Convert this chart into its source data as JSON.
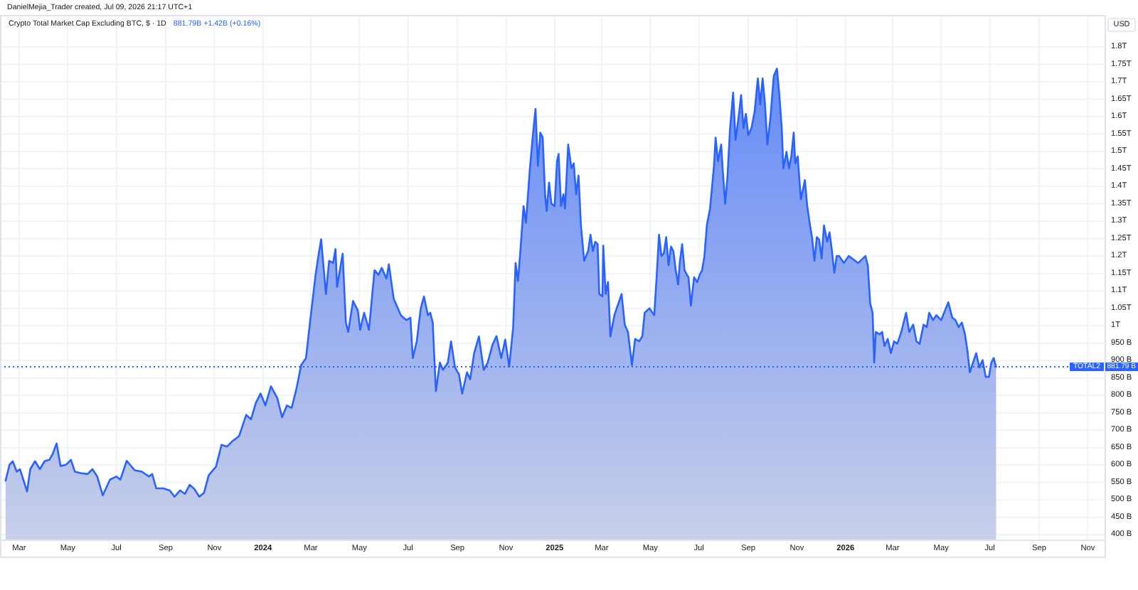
{
  "chart_data": {
    "type": "area",
    "title": "Crypto Total Market Cap Excluding BTC, $ · 1D",
    "subtitle": "881.79B +1.42B (+0.16%)",
    "ylabel": "USD",
    "annotations": [
      "DanielMejia_Trader created, Jul 09, 2026 21:17 UTC+1",
      "881.79 B"
    ],
    "x": [
      "2023-02-12",
      "2023-02-17",
      "2023-02-21",
      "2023-02-26",
      "2023-03-02",
      "2023-03-06",
      "2023-03-11",
      "2023-03-15",
      "2023-03-21",
      "2023-03-27",
      "2023-04-02",
      "2023-04-08",
      "2023-04-12",
      "2023-04-17",
      "2023-04-22",
      "2023-04-29",
      "2023-05-05",
      "2023-05-10",
      "2023-05-17",
      "2023-05-26",
      "2023-06-01",
      "2023-06-07",
      "2023-06-14",
      "2023-06-23",
      "2023-07-01",
      "2023-07-06",
      "2023-07-14",
      "2023-07-24",
      "2023-08-02",
      "2023-08-11",
      "2023-08-15",
      "2023-08-20",
      "2023-08-29",
      "2023-09-06",
      "2023-09-12",
      "2023-09-19",
      "2023-09-25",
      "2023-10-01",
      "2023-10-07",
      "2023-10-13",
      "2023-10-19",
      "2023-10-25",
      "2023-11-03",
      "2023-11-10",
      "2023-11-17",
      "2023-11-23",
      "2023-12-02",
      "2023-12-06",
      "2023-12-11",
      "2023-12-17",
      "2023-12-23",
      "2023-12-29",
      "2024-01-04",
      "2024-01-11",
      "2024-01-19",
      "2024-01-25",
      "2024-01-31",
      "2024-02-06",
      "2024-02-12",
      "2024-02-18",
      "2024-02-24",
      "2024-02-29",
      "2024-03-07",
      "2024-03-11",
      "2024-03-14",
      "2024-03-20",
      "2024-03-24",
      "2024-03-29",
      "2024-04-01",
      "2024-04-03",
      "2024-04-10",
      "2024-04-14",
      "2024-04-17",
      "2024-04-23",
      "2024-04-29",
      "2024-05-02",
      "2024-05-07",
      "2024-05-13",
      "2024-05-20",
      "2024-05-25",
      "2024-05-29",
      "2024-06-04",
      "2024-06-07",
      "2024-06-13",
      "2024-06-22",
      "2024-06-29",
      "2024-07-04",
      "2024-07-07",
      "2024-07-12",
      "2024-07-17",
      "2024-07-21",
      "2024-07-26",
      "2024-07-29",
      "2024-08-01",
      "2024-08-05",
      "2024-08-10",
      "2024-08-14",
      "2024-08-20",
      "2024-08-24",
      "2024-08-29",
      "2024-09-03",
      "2024-09-07",
      "2024-09-13",
      "2024-09-17",
      "2024-09-22",
      "2024-09-28",
      "2024-10-04",
      "2024-10-09",
      "2024-10-15",
      "2024-10-20",
      "2024-10-26",
      "2024-10-31",
      "2024-11-05",
      "2024-11-10",
      "2024-11-13",
      "2024-11-16",
      "2024-11-19",
      "2024-11-23",
      "2024-11-26",
      "2024-12-01",
      "2024-12-05",
      "2024-12-08",
      "2024-12-11",
      "2024-12-14",
      "2024-12-17",
      "2024-12-20",
      "2024-12-22",
      "2024-12-25",
      "2024-12-28",
      "2025-01-01",
      "2025-01-04",
      "2025-01-06",
      "2025-01-09",
      "2025-01-12",
      "2025-01-14",
      "2025-01-18",
      "2025-01-22",
      "2025-01-25",
      "2025-01-28",
      "2025-01-31",
      "2025-02-03",
      "2025-02-07",
      "2025-02-12",
      "2025-02-15",
      "2025-02-18",
      "2025-02-21",
      "2025-02-24",
      "2025-02-26",
      "2025-03-02",
      "2025-03-03",
      "2025-03-06",
      "2025-03-09",
      "2025-03-12",
      "2025-03-17",
      "2025-03-21",
      "2025-03-26",
      "2025-03-30",
      "2025-04-03",
      "2025-04-08",
      "2025-04-12",
      "2025-04-17",
      "2025-04-21",
      "2025-04-24",
      "2025-04-30",
      "2025-05-06",
      "2025-05-09",
      "2025-05-12",
      "2025-05-15",
      "2025-05-18",
      "2025-05-21",
      "2025-05-24",
      "2025-05-27",
      "2025-05-30",
      "2025-06-02",
      "2025-06-05",
      "2025-06-07",
      "2025-06-10",
      "2025-06-13",
      "2025-06-16",
      "2025-06-18",
      "2025-06-21",
      "2025-06-25",
      "2025-06-29",
      "2025-07-02",
      "2025-07-05",
      "2025-07-08",
      "2025-07-11",
      "2025-07-15",
      "2025-07-20",
      "2025-07-22",
      "2025-07-25",
      "2025-07-29",
      "2025-07-31",
      "2025-08-03",
      "2025-08-06",
      "2025-08-09",
      "2025-08-13",
      "2025-08-16",
      "2025-08-20",
      "2025-08-23",
      "2025-08-26",
      "2025-08-29",
      "2025-09-01",
      "2025-09-05",
      "2025-09-09",
      "2025-09-13",
      "2025-09-16",
      "2025-09-19",
      "2025-09-22",
      "2025-09-25",
      "2025-09-29",
      "2025-10-03",
      "2025-10-07",
      "2025-10-10",
      "2025-10-13",
      "2025-10-15",
      "2025-10-19",
      "2025-10-22",
      "2025-10-25",
      "2025-10-28",
      "2025-10-30",
      "2025-11-02",
      "2025-11-06",
      "2025-11-08",
      "2025-11-11",
      "2025-11-14",
      "2025-11-17",
      "2025-11-20",
      "2025-11-23",
      "2025-11-26",
      "2025-11-29",
      "2025-12-02",
      "2025-12-05",
      "2025-12-09",
      "2025-12-12",
      "2025-12-15",
      "2025-12-18",
      "2025-12-21",
      "2025-12-24",
      "2025-12-30",
      "2026-01-05",
      "2026-01-17",
      "2026-01-26",
      "2026-01-29",
      "2026-02-01",
      "2026-02-04",
      "2026-02-06",
      "2026-02-08",
      "2026-02-13",
      "2026-02-16",
      "2026-02-19",
      "2026-02-23",
      "2026-02-27",
      "2026-03-03",
      "2026-03-07",
      "2026-03-12",
      "2026-03-18",
      "2026-03-22",
      "2026-03-27",
      "2026-03-31",
      "2026-04-04",
      "2026-04-09",
      "2026-04-13",
      "2026-04-16",
      "2026-04-21",
      "2026-04-25",
      "2026-05-01",
      "2026-05-06",
      "2026-05-10",
      "2026-05-15",
      "2026-05-19",
      "2026-05-23",
      "2026-05-27",
      "2026-05-31",
      "2026-06-03",
      "2026-06-06",
      "2026-06-10",
      "2026-06-14",
      "2026-06-18",
      "2026-06-22",
      "2026-06-26",
      "2026-06-30",
      "2026-07-03",
      "2026-07-06",
      "2026-07-08",
      "2026-07-09"
    ],
    "series": [
      {
        "color": "#2962ff",
        "values": [
          555000000000.0,
          601000000000.0,
          611000000000.0,
          581000000000.0,
          588000000000.0,
          560000000000.0,
          524000000000.0,
          588000000000.0,
          611000000000.0,
          588000000000.0,
          611000000000.0,
          615000000000.0,
          631000000000.0,
          662000000000.0,
          597000000000.0,
          601000000000.0,
          615000000000.0,
          581000000000.0,
          577000000000.0,
          574000000000.0,
          588000000000.0,
          567000000000.0,
          513000000000.0,
          558000000000.0,
          567000000000.0,
          558000000000.0,
          612000000000.0,
          585000000000.0,
          581000000000.0,
          567000000000.0,
          574000000000.0,
          533000000000.0,
          533000000000.0,
          527000000000.0,
          509000000000.0,
          527000000000.0,
          517000000000.0,
          543000000000.0,
          531000000000.0,
          509000000000.0,
          520000000000.0,
          571000000000.0,
          595000000000.0,
          658000000000.0,
          653000000000.0,
          667000000000.0,
          683000000000.0,
          710000000000.0,
          744000000000.0,
          731000000000.0,
          778000000000.0,
          805000000000.0,
          771000000000.0,
          826000000000.0,
          792000000000.0,
          737000000000.0,
          771000000000.0,
          764000000000.0,
          819000000000.0,
          887000000000.0,
          907000000000.0,
          1009000000000.0,
          1146000000000.0,
          1207000000000.0,
          1248000000000.0,
          1091000000000.0,
          1186000000000.0,
          1180000000000.0,
          1220000000000.0,
          1111000000000.0,
          1207000000000.0,
          1009000000000.0,
          982000000000.0,
          1071000000000.0,
          1044000000000.0,
          988000000000.0,
          1037000000000.0,
          988000000000.0,
          1159000000000.0,
          1146000000000.0,
          1166000000000.0,
          1135000000000.0,
          1176000000000.0,
          1078000000000.0,
          1030000000000.0,
          1016000000000.0,
          1023000000000.0,
          907000000000.0,
          955000000000.0,
          1050000000000.0,
          1084000000000.0,
          1030000000000.0,
          1037000000000.0,
          1009000000000.0,
          812000000000.0,
          894000000000.0,
          873000000000.0,
          894000000000.0,
          955000000000.0,
          880000000000.0,
          860000000000.0,
          805000000000.0,
          866000000000.0,
          846000000000.0,
          921000000000.0,
          969000000000.0,
          873000000000.0,
          894000000000.0,
          945000000000.0,
          970000000000.0,
          907000000000.0,
          960000000000.0,
          882000000000.0,
          996000000000.0,
          1180000000000.0,
          1128000000000.0,
          1214000000000.0,
          1343000000000.0,
          1295000000000.0,
          1452000000000.0,
          1554000000000.0,
          1622000000000.0,
          1459000000000.0,
          1554000000000.0,
          1541000000000.0,
          1377000000000.0,
          1329000000000.0,
          1411000000000.0,
          1350000000000.0,
          1343000000000.0,
          1472000000000.0,
          1493000000000.0,
          1343000000000.0,
          1377000000000.0,
          1336000000000.0,
          1520000000000.0,
          1452000000000.0,
          1466000000000.0,
          1377000000000.0,
          1431000000000.0,
          1288000000000.0,
          1186000000000.0,
          1214000000000.0,
          1261000000000.0,
          1214000000000.0,
          1241000000000.0,
          1234000000000.0,
          1091000000000.0,
          1084000000000.0,
          1230000000000.0,
          1091000000000.0,
          1125000000000.0,
          969000000000.0,
          1030000000000.0,
          1057000000000.0,
          1091000000000.0,
          1003000000000.0,
          982000000000.0,
          887000000000.0,
          962000000000.0,
          955000000000.0,
          969000000000.0,
          1037000000000.0,
          1050000000000.0,
          1030000000000.0,
          1139000000000.0,
          1261000000000.0,
          1200000000000.0,
          1207000000000.0,
          1254000000000.0,
          1173000000000.0,
          1227000000000.0,
          1214000000000.0,
          1159000000000.0,
          1118000000000.0,
          1180000000000.0,
          1234000000000.0,
          1159000000000.0,
          1146000000000.0,
          1139000000000.0,
          1057000000000.0,
          1139000000000.0,
          1125000000000.0,
          1146000000000.0,
          1159000000000.0,
          1200000000000.0,
          1288000000000.0,
          1336000000000.0,
          1459000000000.0,
          1540000000000.0,
          1472000000000.0,
          1520000000000.0,
          1445000000000.0,
          1350000000000.0,
          1431000000000.0,
          1561000000000.0,
          1669000000000.0,
          1533000000000.0,
          1601000000000.0,
          1662000000000.0,
          1567000000000.0,
          1608000000000.0,
          1547000000000.0,
          1567000000000.0,
          1615000000000.0,
          1710000000000.0,
          1635000000000.0,
          1710000000000.0,
          1635000000000.0,
          1520000000000.0,
          1601000000000.0,
          1717000000000.0,
          1738000000000.0,
          1662000000000.0,
          1567000000000.0,
          1452000000000.0,
          1499000000000.0,
          1452000000000.0,
          1486000000000.0,
          1554000000000.0,
          1466000000000.0,
          1486000000000.0,
          1363000000000.0,
          1384000000000.0,
          1418000000000.0,
          1343000000000.0,
          1295000000000.0,
          1254000000000.0,
          1186000000000.0,
          1254000000000.0,
          1247000000000.0,
          1193000000000.0,
          1288000000000.0,
          1241000000000.0,
          1268000000000.0,
          1214000000000.0,
          1152000000000.0,
          1200000000000.0,
          1200000000000.0,
          1180000000000.0,
          1200000000000.0,
          1180000000000.0,
          1200000000000.0,
          1173000000000.0,
          1064000000000.0,
          1037000000000.0,
          894000000000.0,
          982000000000.0,
          975000000000.0,
          982000000000.0,
          941000000000.0,
          962000000000.0,
          921000000000.0,
          955000000000.0,
          948000000000.0,
          982000000000.0,
          1037000000000.0,
          982000000000.0,
          1003000000000.0,
          955000000000.0,
          948000000000.0,
          1003000000000.0,
          996000000000.0,
          1037000000000.0,
          1016000000000.0,
          1030000000000.0,
          1016000000000.0,
          1044000000000.0,
          1067000000000.0,
          1023000000000.0,
          1016000000000.0,
          996000000000.0,
          1009000000000.0,
          975000000000.0,
          928000000000.0,
          866000000000.0,
          894000000000.0,
          921000000000.0,
          880000000000.0,
          901000000000.0,
          853000000000.0,
          853000000000.0,
          894000000000.0,
          907000000000.0,
          890000000000.0,
          881790000000.0
        ]
      }
    ],
    "xlim": [
      "2023-02-05",
      "2026-11-23"
    ],
    "xticks": [
      {
        "value": "2023-03-01",
        "label": "Mar"
      },
      {
        "value": "2023-05-01",
        "label": "May"
      },
      {
        "value": "2023-07-01",
        "label": "Jul"
      },
      {
        "value": "2023-09-01",
        "label": "Sep"
      },
      {
        "value": "2023-11-01",
        "label": "Nov"
      },
      {
        "value": "2024-01-01",
        "label": "2024"
      },
      {
        "value": "2024-03-01",
        "label": "Mar"
      },
      {
        "value": "2024-05-01",
        "label": "May"
      },
      {
        "value": "2024-07-01",
        "label": "Jul"
      },
      {
        "value": "2024-09-01",
        "label": "Sep"
      },
      {
        "value": "2024-11-01",
        "label": "Nov"
      },
      {
        "value": "2025-01-01",
        "label": "2025"
      },
      {
        "value": "2025-03-01",
        "label": "Mar"
      },
      {
        "value": "2025-05-01",
        "label": "May"
      },
      {
        "value": "2025-07-01",
        "label": "Jul"
      },
      {
        "value": "2025-09-01",
        "label": "Sep"
      },
      {
        "value": "2025-11-01",
        "label": "Nov"
      },
      {
        "value": "2026-01-01",
        "label": "2026"
      },
      {
        "value": "2026-03-01",
        "label": "Mar"
      },
      {
        "value": "2026-05-01",
        "label": "May"
      },
      {
        "value": "2026-07-01",
        "label": "Jul"
      },
      {
        "value": "2026-09-01",
        "label": "Sep"
      },
      {
        "value": "2026-11-01",
        "label": "Nov"
      }
    ],
    "ylim": [
      384000000000.0,
      1890000000000.0
    ],
    "yticks": [
      {
        "value": 400000000000.0,
        "label": "400 B"
      },
      {
        "value": 450000000000.0,
        "label": "450 B"
      },
      {
        "value": 500000000000.0,
        "label": "500 B"
      },
      {
        "value": 550000000000.0,
        "label": "550 B"
      },
      {
        "value": 600000000000.0,
        "label": "600 B"
      },
      {
        "value": 650000000000.0,
        "label": "650 B"
      },
      {
        "value": 700000000000.0,
        "label": "700 B"
      },
      {
        "value": 750000000000.0,
        "label": "750 B"
      },
      {
        "value": 800000000000.0,
        "label": "800 B"
      },
      {
        "value": 850000000000.0,
        "label": "850 B"
      },
      {
        "value": 900000000000.0,
        "label": "900 B"
      },
      {
        "value": 950000000000.0,
        "label": "950 B"
      },
      {
        "value": 1000000000000.0,
        "label": "1T"
      },
      {
        "value": 1050000000000.0,
        "label": "1.05T"
      },
      {
        "value": 1100000000000.0,
        "label": "1.1T"
      },
      {
        "value": 1150000000000.0,
        "label": "1.15T"
      },
      {
        "value": 1200000000000.0,
        "label": "1.2T"
      },
      {
        "value": 1250000000000.0,
        "label": "1.25T"
      },
      {
        "value": 1300000000000.0,
        "label": "1.3T"
      },
      {
        "value": 1350000000000.0,
        "label": "1.35T"
      },
      {
        "value": 1400000000000.0,
        "label": "1.4T"
      },
      {
        "value": 1450000000000.0,
        "label": "1.45T"
      },
      {
        "value": 1500000000000.0,
        "label": "1.5T"
      },
      {
        "value": 1550000000000.0,
        "label": "1.55T"
      },
      {
        "value": 1600000000000.0,
        "label": "1.6T"
      },
      {
        "value": 1650000000000.0,
        "label": "1.65T"
      },
      {
        "value": 1700000000000.0,
        "label": "1.7T"
      },
      {
        "value": 1750000000000.0,
        "label": "1.75T"
      },
      {
        "value": 1800000000000.0,
        "label": "1.8T"
      }
    ],
    "ref_lines": [
      {
        "axis": "y",
        "value": 881790000000.0,
        "label": "TOTAL2",
        "color": "#2962ff",
        "line_style": "dotted"
      }
    ],
    "grid": true
  }
}
